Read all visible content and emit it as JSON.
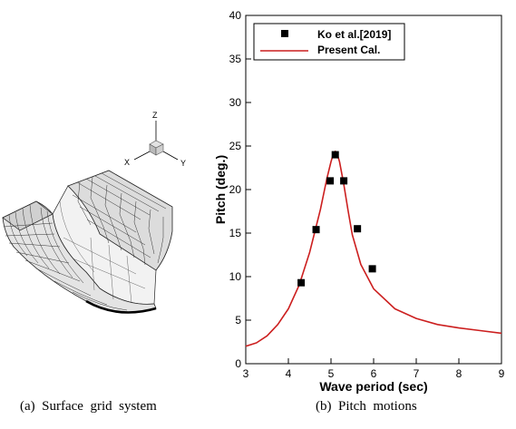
{
  "captions": {
    "left": "(a)  Surface  grid  system",
    "right": "(b)  Pitch  motions"
  },
  "triad": {
    "z": "Z",
    "x": "X",
    "y": "Y"
  },
  "colors": {
    "line": "#cc1f1f",
    "marker": "#000000",
    "grid_fill": "#ececec"
  },
  "chart_data": {
    "type": "line",
    "xlabel": "Wave period (sec)",
    "ylabel": "Pitch (deg.)",
    "xlim": [
      3,
      9
    ],
    "ylim": [
      0,
      40
    ],
    "xticks": [
      "3",
      "4",
      "5",
      "6",
      "7",
      "8",
      "9"
    ],
    "yticks": [
      "0",
      "5",
      "10",
      "15",
      "20",
      "25",
      "30",
      "35",
      "40"
    ],
    "grid": false,
    "legend_position": "top-left",
    "series": [
      {
        "name": "Ko et al.[2019]",
        "kind": "scatter",
        "marker": "square",
        "x": [
          4.3,
          4.65,
          4.98,
          5.1,
          5.3,
          5.62,
          5.97
        ],
        "y": [
          9.3,
          15.4,
          21.0,
          24.0,
          21.0,
          15.5,
          10.9
        ]
      },
      {
        "name": "Present Cal.",
        "kind": "line",
        "x": [
          3.0,
          3.25,
          3.5,
          3.75,
          4.0,
          4.25,
          4.5,
          4.75,
          4.9,
          5.0,
          5.05,
          5.1,
          5.15,
          5.2,
          5.3,
          5.4,
          5.5,
          5.7,
          6.0,
          6.5,
          7.0,
          7.5,
          8.0,
          8.5,
          9.0
        ],
        "y": [
          2.0,
          2.4,
          3.2,
          4.5,
          6.3,
          9.0,
          12.8,
          17.7,
          21.2,
          23.2,
          24.0,
          24.4,
          24.0,
          23.2,
          20.6,
          17.6,
          14.8,
          11.4,
          8.6,
          6.3,
          5.2,
          4.5,
          4.1,
          3.8,
          3.5
        ]
      }
    ]
  }
}
